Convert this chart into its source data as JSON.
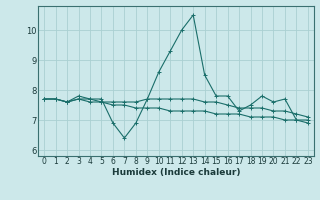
{
  "xlabel": "Humidex (Indice chaleur)",
  "ylabel": "",
  "background_color": "#cce8ea",
  "grid_color": "#aad0d2",
  "line_color": "#1a6e6a",
  "xlim": [
    -0.5,
    23.5
  ],
  "ylim": [
    5.8,
    10.8
  ],
  "yticks": [
    6,
    7,
    8,
    9,
    10
  ],
  "xticks": [
    0,
    1,
    2,
    3,
    4,
    5,
    6,
    7,
    8,
    9,
    10,
    11,
    12,
    13,
    14,
    15,
    16,
    17,
    18,
    19,
    20,
    21,
    22,
    23
  ],
  "series1": [
    7.7,
    7.7,
    7.6,
    7.8,
    7.7,
    7.7,
    6.9,
    6.4,
    6.9,
    7.7,
    8.6,
    9.3,
    10.0,
    10.5,
    8.5,
    7.8,
    7.8,
    7.3,
    7.5,
    7.8,
    7.6,
    7.7,
    7.0,
    7.0
  ],
  "series2": [
    7.7,
    7.7,
    7.6,
    7.7,
    7.7,
    7.6,
    7.6,
    7.6,
    7.6,
    7.7,
    7.7,
    7.7,
    7.7,
    7.7,
    7.6,
    7.6,
    7.5,
    7.4,
    7.4,
    7.4,
    7.3,
    7.3,
    7.2,
    7.1
  ],
  "series3": [
    7.7,
    7.7,
    7.6,
    7.7,
    7.6,
    7.6,
    7.5,
    7.5,
    7.4,
    7.4,
    7.4,
    7.3,
    7.3,
    7.3,
    7.3,
    7.2,
    7.2,
    7.2,
    7.1,
    7.1,
    7.1,
    7.0,
    7.0,
    6.9
  ],
  "tick_fontsize": 5.5,
  "xlabel_fontsize": 6.5,
  "marker_size": 2.5,
  "linewidth": 0.8
}
